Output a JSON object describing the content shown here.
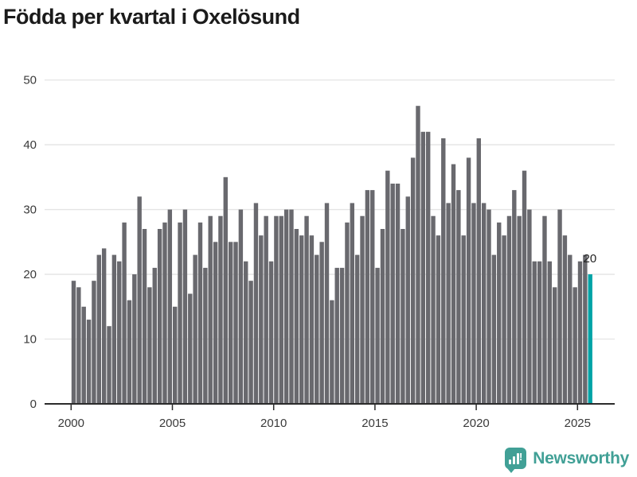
{
  "title": "Födda per kvartal i Oxelösund",
  "footer": {
    "brand": "Newsworthy"
  },
  "colors": {
    "bar": "#69696e",
    "highlight": "#00a3a6",
    "grid": "#e4e4e4",
    "axis_line": "#2b2b2b",
    "tick_text": "#3a3a3a",
    "annotation_text": "#222222",
    "logo_teal": "#41a096",
    "background": "#ffffff"
  },
  "chart_data": {
    "type": "bar",
    "title": "Födda per kvartal i Oxelösund",
    "xlabel": "",
    "ylabel": "",
    "x_start": "2000-Q1",
    "x_end": "2025-Q3",
    "x_tick_labels": [
      "2000",
      "2005",
      "2010",
      "2015",
      "2020",
      "2025"
    ],
    "y_ticks": [
      0,
      10,
      20,
      30,
      40,
      50
    ],
    "ylim": [
      0,
      50
    ],
    "grid": "horizontal",
    "legend": "none",
    "highlight_last_bar": true,
    "last_value_label": "20",
    "series": [
      {
        "name": "Födda per kvartal",
        "values": [
          19,
          18,
          15,
          13,
          19,
          23,
          24,
          12,
          23,
          22,
          28,
          16,
          20,
          32,
          27,
          18,
          21,
          27,
          28,
          30,
          15,
          28,
          30,
          17,
          23,
          28,
          21,
          29,
          25,
          29,
          35,
          25,
          25,
          30,
          22,
          19,
          31,
          26,
          29,
          22,
          29,
          29,
          30,
          30,
          27,
          26,
          29,
          26,
          23,
          25,
          31,
          16,
          21,
          21,
          28,
          31,
          23,
          29,
          33,
          33,
          21,
          27,
          36,
          34,
          34,
          27,
          32,
          38,
          46,
          42,
          42,
          29,
          26,
          41,
          31,
          37,
          33,
          26,
          38,
          31,
          41,
          31,
          30,
          23,
          28,
          26,
          29,
          33,
          29,
          36,
          30,
          22,
          22,
          29,
          22,
          18,
          30,
          26,
          23,
          18,
          22,
          23,
          20
        ]
      }
    ]
  }
}
